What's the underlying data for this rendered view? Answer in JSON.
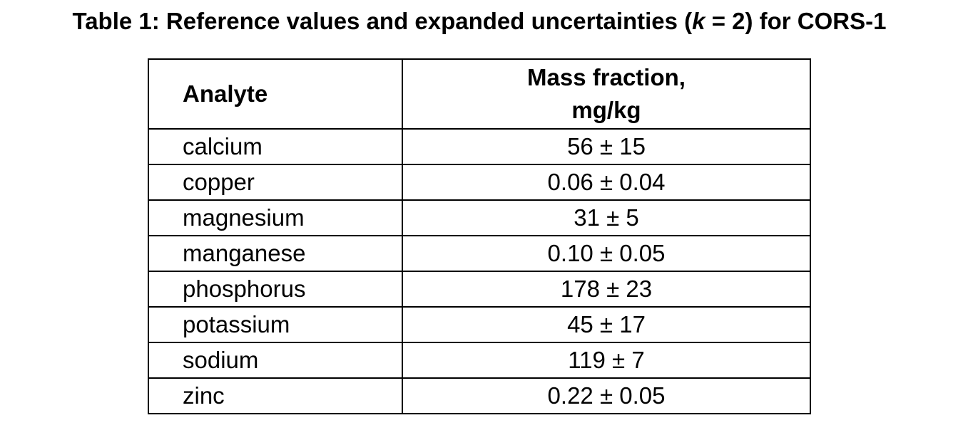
{
  "title": {
    "before": "Table 1: Reference values and expanded uncertainties (",
    "k": "k",
    "after": " = 2) for CORS-1"
  },
  "table": {
    "headers": {
      "analyte": "Analyte",
      "mass_line1": "Mass fraction,",
      "mass_line2": "mg/kg"
    },
    "rows": [
      {
        "analyte": "calcium",
        "value": "56 ± 15"
      },
      {
        "analyte": "copper",
        "value": "0.06 ± 0.04"
      },
      {
        "analyte": "magnesium",
        "value": "31 ± 5"
      },
      {
        "analyte": "manganese",
        "value": "0.10 ± 0.05"
      },
      {
        "analyte": "phosphorus",
        "value": "178 ± 23"
      },
      {
        "analyte": "potassium",
        "value": "45 ± 17"
      },
      {
        "analyte": "sodium",
        "value": "119 ± 7"
      },
      {
        "analyte": "zinc",
        "value": "0.22 ± 0.05"
      }
    ]
  }
}
